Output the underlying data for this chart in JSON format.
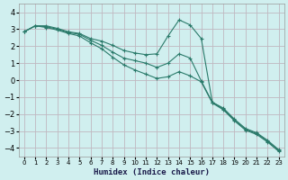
{
  "xlabel": "Humidex (Indice chaleur)",
  "x": [
    0,
    1,
    2,
    3,
    4,
    5,
    6,
    7,
    8,
    9,
    10,
    11,
    12,
    13,
    14,
    15,
    16,
    17,
    18,
    19,
    20,
    21,
    22,
    23
  ],
  "lines": [
    [
      2.85,
      3.2,
      3.2,
      3.05,
      2.85,
      2.75,
      2.45,
      2.3,
      2.05,
      1.75,
      1.6,
      1.5,
      1.55,
      2.6,
      3.55,
      3.25,
      2.45,
      -1.3,
      -1.65,
      -2.3,
      -2.85,
      -3.1,
      -3.55,
      -4.1
    ],
    [
      2.85,
      3.2,
      3.15,
      3.0,
      2.8,
      2.7,
      2.35,
      2.05,
      1.65,
      1.3,
      1.15,
      1.0,
      0.75,
      1.0,
      1.55,
      1.3,
      -0.05,
      -1.3,
      -1.7,
      -2.35,
      -2.9,
      -3.15,
      -3.6,
      -4.15
    ],
    [
      2.85,
      3.2,
      3.1,
      2.95,
      2.75,
      2.6,
      2.2,
      1.85,
      1.35,
      0.9,
      0.6,
      0.35,
      0.1,
      0.2,
      0.5,
      0.25,
      -0.1,
      -1.35,
      -1.75,
      -2.4,
      -2.95,
      -3.2,
      -3.65,
      -4.2
    ]
  ],
  "line_color": "#2a7a6a",
  "bg_color": "#d0efef",
  "grid_color": "#c0b8c0",
  "ylim": [
    -4.5,
    4.5
  ],
  "xlim": [
    -0.5,
    23.5
  ],
  "yticks": [
    -4,
    -3,
    -2,
    -1,
    0,
    1,
    2,
    3,
    4
  ],
  "xticks": [
    0,
    1,
    2,
    3,
    4,
    5,
    6,
    7,
    8,
    9,
    10,
    11,
    12,
    13,
    14,
    15,
    16,
    17,
    18,
    19,
    20,
    21,
    22,
    23
  ]
}
